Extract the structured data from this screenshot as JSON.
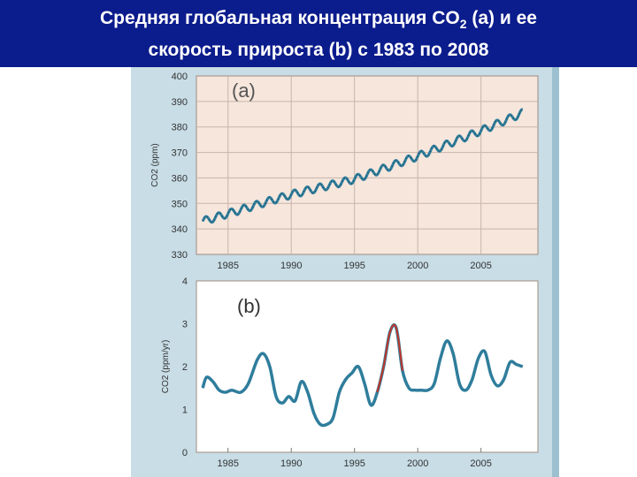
{
  "slide": {
    "title_line1_pre": "Средняя глобальная концентрация  CO",
    "title_line1_sub": "2",
    "title_line1_post": " (a) и ее",
    "title_line2": "скорость прироста (b) с 1983 по 2008"
  },
  "colors": {
    "title_bg": "#0b1c8c",
    "title_text": "#ffffff",
    "figure_bg": "#c8dde6",
    "plot_bg_a": "#f6e6dc",
    "plot_bg_b": "#ffffff",
    "series": "#2f7d9c",
    "highlight": "#c0362c",
    "grid": "#c8b4aa"
  },
  "chart_data": [
    {
      "type": "line",
      "panel_label": "(a)",
      "ylabel": "CO2 (ppm)",
      "xticks": [
        "1985",
        "1990",
        "1995",
        "2000",
        "2005"
      ],
      "xlim": [
        1982.5,
        2009.5
      ],
      "ylim": [
        330,
        400
      ],
      "yticks": [
        330,
        340,
        350,
        360,
        370,
        380,
        390,
        400
      ],
      "grid": true,
      "trend_points": [
        {
          "x": 1983.0,
          "y": 343.0
        },
        {
          "x": 1990.0,
          "y": 353.5
        },
        {
          "x": 1995.0,
          "y": 359.5
        },
        {
          "x": 2000.0,
          "y": 368.5
        },
        {
          "x": 2005.0,
          "y": 378.5
        },
        {
          "x": 2008.3,
          "y": 385.5
        }
      ],
      "seasonal_amplitude": 1.5
    },
    {
      "type": "line",
      "panel_label": "(b)",
      "ylabel": "CO2 (ppm/yr)",
      "xticks": [
        "1985",
        "1990",
        "1995",
        "2000",
        "2005"
      ],
      "xlim": [
        1982.5,
        2009.5
      ],
      "ylim": [
        0,
        4
      ],
      "yticks": [
        0,
        1,
        2,
        3,
        4
      ],
      "grid": false,
      "x": [
        1983.0,
        1983.3,
        1983.8,
        1984.3,
        1984.8,
        1985.3,
        1986.0,
        1986.6,
        1987.3,
        1987.8,
        1988.3,
        1988.8,
        1989.3,
        1989.8,
        1990.3,
        1990.8,
        1991.3,
        1991.8,
        1992.3,
        1992.8,
        1993.3,
        1993.8,
        1994.3,
        1994.8,
        1995.3,
        1995.8,
        1996.3,
        1996.8,
        1997.3,
        1997.8,
        1998.3,
        1998.8,
        1999.3,
        1999.8,
        2000.3,
        2000.8,
        2001.3,
        2001.8,
        2002.3,
        2002.8,
        2003.3,
        2003.8,
        2004.3,
        2004.8,
        2005.3,
        2005.8,
        2006.3,
        2006.8,
        2007.3,
        2007.8,
        2008.3
      ],
      "values": [
        1.5,
        1.75,
        1.65,
        1.45,
        1.4,
        1.45,
        1.4,
        1.6,
        2.15,
        2.3,
        2.0,
        1.3,
        1.15,
        1.3,
        1.2,
        1.65,
        1.4,
        0.9,
        0.65,
        0.65,
        0.8,
        1.4,
        1.7,
        1.85,
        2.0,
        1.6,
        1.1,
        1.4,
        2.0,
        2.8,
        2.9,
        1.9,
        1.5,
        1.45,
        1.45,
        1.45,
        1.6,
        2.2,
        2.6,
        2.3,
        1.6,
        1.45,
        1.7,
        2.2,
        2.35,
        1.8,
        1.55,
        1.7,
        2.1,
        2.05,
        2.0
      ],
      "highlight_range": [
        1996.8,
        1998.8
      ]
    }
  ]
}
